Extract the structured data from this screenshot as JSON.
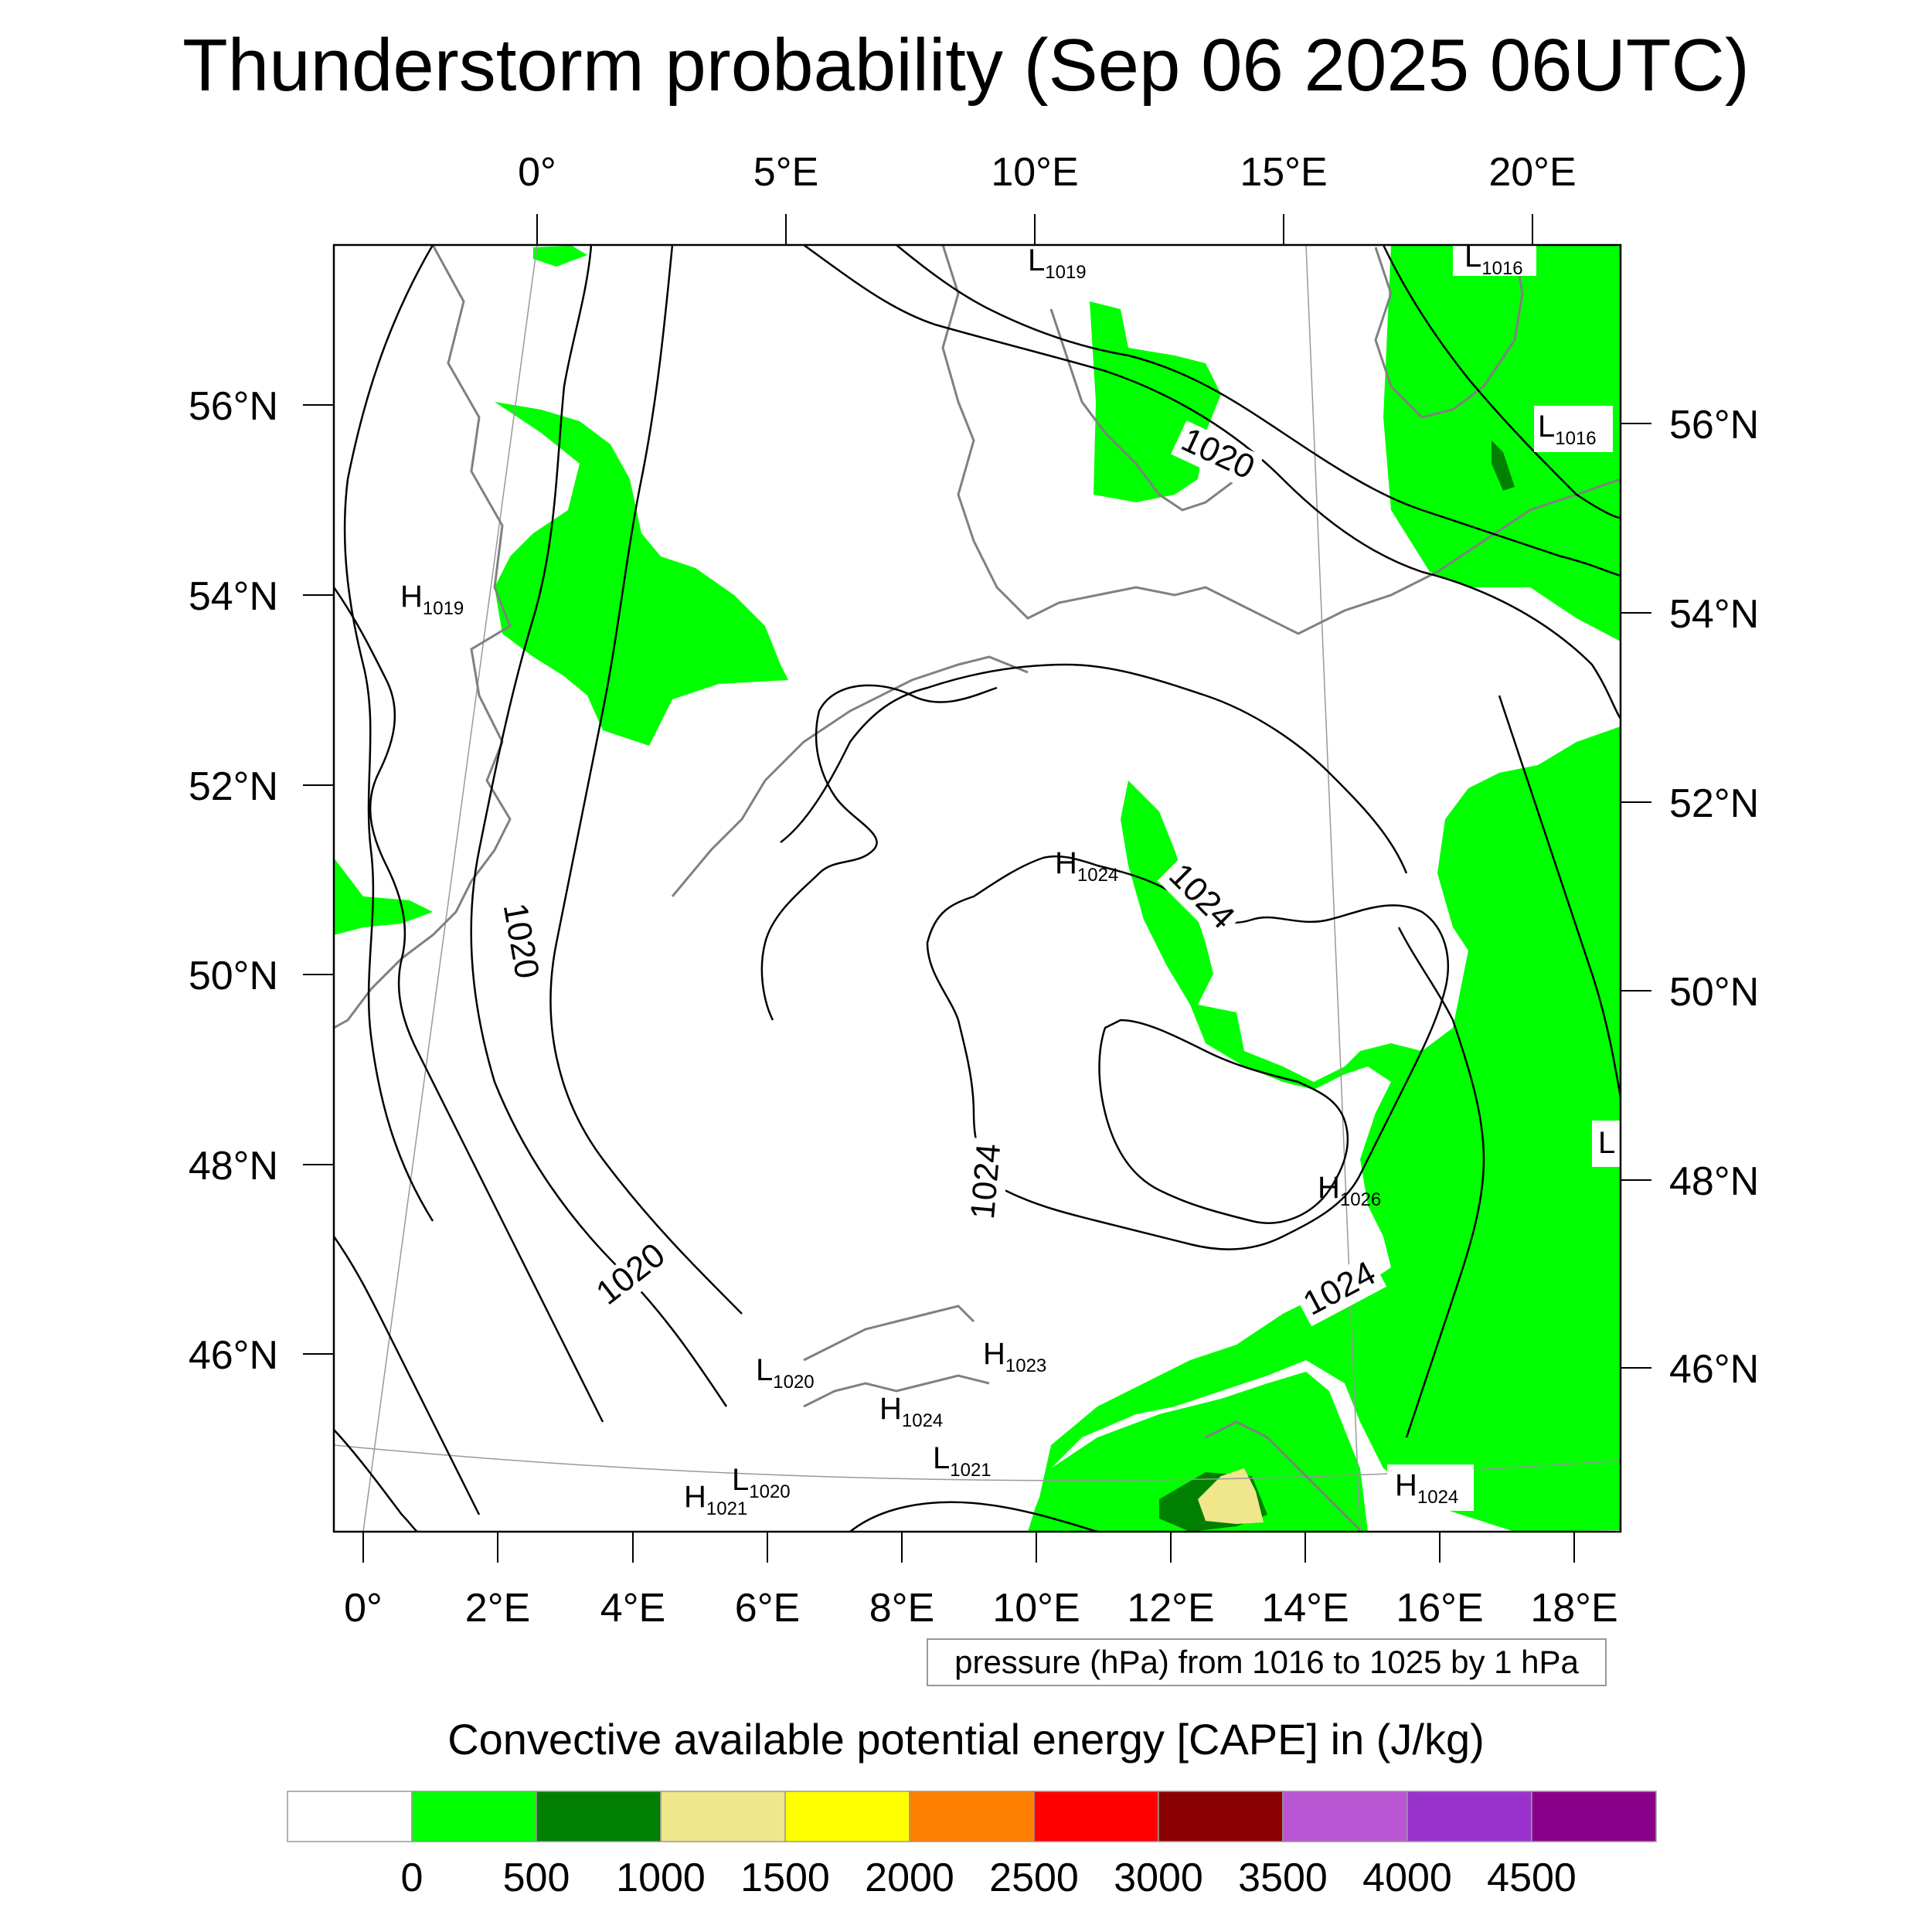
{
  "title": "Thunderstorm probability (Sep 06 2025 06UTC)",
  "map": {
    "top_axis_labels": [
      "0°",
      "5°E",
      "10°E",
      "15°E",
      "20°E"
    ],
    "left_axis_labels": [
      "56°N",
      "54°N",
      "52°N",
      "50°N",
      "48°N",
      "46°N"
    ],
    "right_axis_labels": [
      "56°N",
      "54°N",
      "52°N",
      "50°N",
      "48°N",
      "46°N"
    ],
    "bottom_axis_labels": [
      "0°",
      "2°E",
      "4°E",
      "6°E",
      "8°E",
      "10°E",
      "12°E",
      "14°E",
      "16°E",
      "18°E"
    ],
    "pressure_centers": [
      {
        "kind": "L",
        "value": "1019"
      },
      {
        "kind": "L",
        "value": "1016"
      },
      {
        "kind": "L",
        "value": "1016"
      },
      {
        "kind": "H",
        "value": "1019"
      },
      {
        "kind": "H",
        "value": "1024"
      },
      {
        "kind": "H",
        "value": "1026"
      },
      {
        "kind": "L",
        "value": ""
      },
      {
        "kind": "H",
        "value": "1023"
      },
      {
        "kind": "L",
        "value": "1020"
      },
      {
        "kind": "H",
        "value": "1024"
      },
      {
        "kind": "L",
        "value": "1021"
      },
      {
        "kind": "L",
        "value": "1020"
      },
      {
        "kind": "H",
        "value": "1021"
      },
      {
        "kind": "H",
        "value": "1024"
      }
    ],
    "contour_labels": [
      "1020",
      "1024",
      "1020",
      "1024",
      "1020",
      "1024"
    ]
  },
  "isobar_info": "pressure (hPa) from 1016 to 1025 by 1 hPa",
  "colorbar": {
    "title": "Convective available potential energy [CAPE] in (J/kg)",
    "colors": [
      "#ffffff",
      "#00ff00",
      "#008000",
      "#f0e68c",
      "#ffff00",
      "#ff8000",
      "#ff0000",
      "#8b0000",
      "#ba55d3",
      "#9932cc",
      "#8b008b"
    ],
    "tick_labels": [
      "0",
      "500",
      "1000",
      "1500",
      "2000",
      "2500",
      "3000",
      "3500",
      "4000",
      "4500"
    ]
  },
  "colors": {
    "cape_low": "#00ff00",
    "cape_mid": "#008000",
    "cape_high": "#f0e68c",
    "isobar": "#000000",
    "coastline": "#808080"
  }
}
